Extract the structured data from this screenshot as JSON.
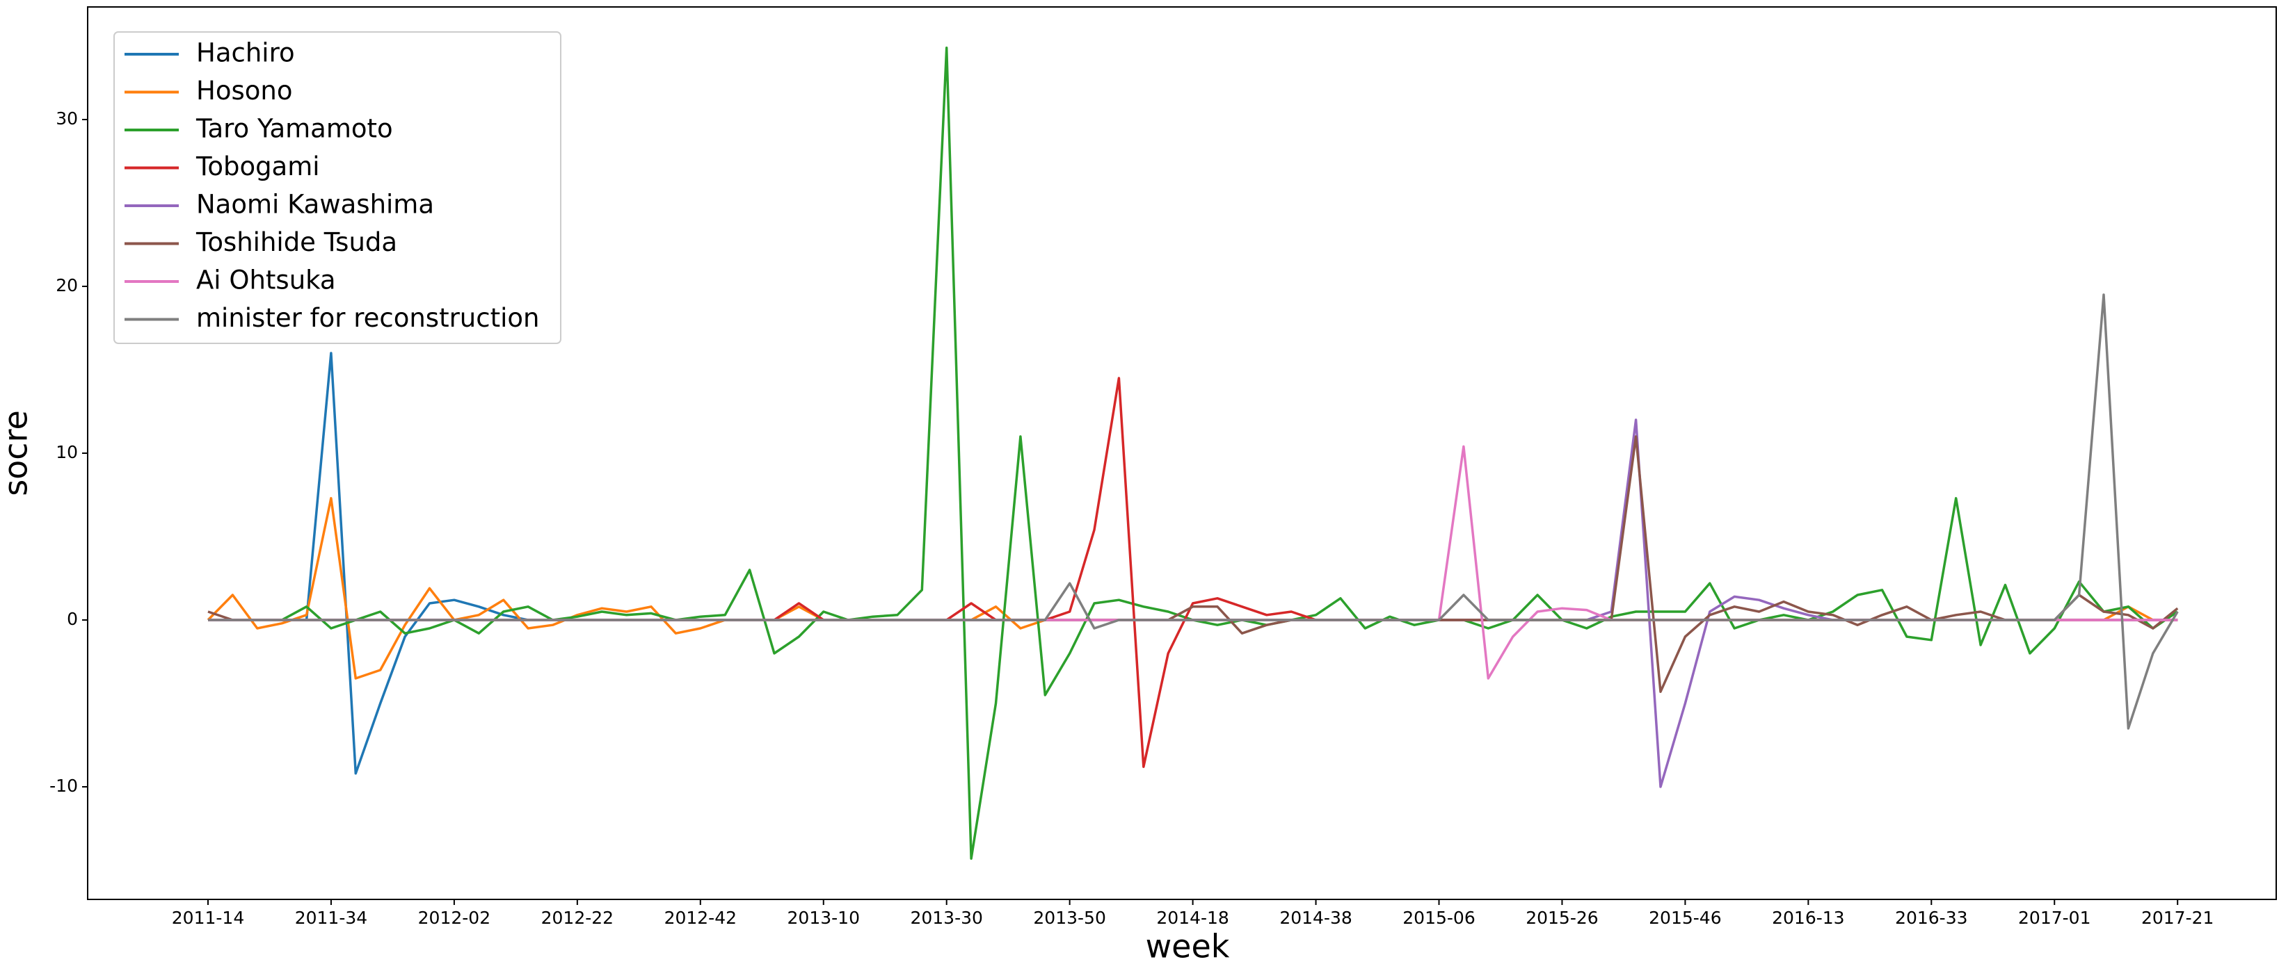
{
  "chart_data": {
    "type": "line",
    "x_label": "week",
    "y_label": "socre",
    "categories": [
      "2011-14",
      null,
      null,
      null,
      null,
      "2011-34",
      null,
      null,
      null,
      null,
      "2012-02",
      null,
      null,
      null,
      null,
      "2012-22",
      null,
      null,
      null,
      null,
      "2012-42",
      null,
      null,
      null,
      null,
      "2013-10",
      null,
      null,
      null,
      null,
      "2013-30",
      null,
      null,
      null,
      null,
      "2013-50",
      null,
      null,
      null,
      null,
      "2014-18",
      null,
      null,
      null,
      null,
      "2014-38",
      null,
      null,
      null,
      null,
      "2015-06",
      null,
      null,
      null,
      null,
      "2015-26",
      null,
      null,
      null,
      null,
      "2015-46",
      null,
      null,
      null,
      null,
      "2016-13",
      null,
      null,
      null,
      null,
      "2016-33",
      null,
      null,
      null,
      null,
      "2017-01",
      null,
      null,
      null,
      null,
      "2017-21"
    ],
    "ylim": [
      -16.75,
      36.75
    ],
    "yticks": [
      -10,
      0,
      10,
      20,
      30
    ],
    "legend": "upper left",
    "series": [
      {
        "name": "Hachiro",
        "color": "#1f77b4",
        "values": [
          0,
          0,
          0,
          0,
          0,
          16,
          -9.2,
          -5,
          -1,
          1,
          1.2,
          0.8,
          0.3,
          0,
          0,
          0,
          0,
          0,
          0,
          0,
          0,
          0,
          0,
          0,
          0,
          0,
          0,
          0,
          0,
          0,
          0,
          0,
          0,
          0,
          0,
          0,
          0,
          0,
          0,
          0,
          0,
          0,
          0,
          0,
          0,
          0,
          0,
          0,
          0,
          0,
          0,
          0,
          0,
          0,
          0,
          0,
          0,
          0,
          0,
          0,
          0,
          0,
          0,
          0,
          0,
          0,
          0,
          0,
          0,
          0,
          0,
          0,
          0,
          0,
          0,
          0,
          0,
          0,
          0,
          0,
          0
        ]
      },
      {
        "name": "Hosono",
        "color": "#ff7f0e",
        "values": [
          0,
          1.5,
          -0.5,
          -0.2,
          0.3,
          7.3,
          -3.5,
          -3,
          -0.3,
          1.9,
          0,
          0.3,
          1.2,
          -0.5,
          -0.3,
          0.3,
          0.7,
          0.5,
          0.8,
          -0.8,
          -0.5,
          0,
          0,
          0,
          0.8,
          0,
          0,
          0,
          0,
          0,
          0,
          0,
          0.8,
          -0.5,
          0,
          0,
          0,
          0,
          0,
          0,
          0,
          0,
          0,
          0,
          0,
          0,
          0,
          0,
          0,
          0,
          0,
          0,
          0,
          0,
          0,
          0,
          0,
          0,
          0,
          0,
          0,
          0,
          0,
          0,
          0,
          0,
          0,
          0,
          0,
          0,
          0,
          0,
          0,
          0,
          0,
          0,
          0,
          0,
          0.8,
          0,
          0
        ]
      },
      {
        "name": "Taro Yamamoto",
        "color": "#2ca02c",
        "values": [
          0,
          0,
          0,
          0,
          0.8,
          -0.5,
          0,
          0.5,
          -0.8,
          -0.5,
          0,
          -0.8,
          0.5,
          0.8,
          0,
          0.2,
          0.5,
          0.3,
          0.4,
          0,
          0.2,
          0.3,
          3,
          -2,
          -1,
          0.5,
          0,
          0.2,
          0.3,
          1.8,
          34.3,
          -14.3,
          -5,
          11,
          -4.5,
          -2,
          1,
          1.2,
          0.8,
          0.5,
          0,
          -0.3,
          0,
          -0.3,
          0,
          0.3,
          1.3,
          -0.5,
          0.2,
          -0.3,
          0,
          0,
          -0.5,
          0,
          1.5,
          0,
          -0.5,
          0.2,
          0.5,
          0.5,
          0.5,
          2.2,
          -0.5,
          0,
          0.3,
          0,
          0.5,
          1.5,
          1.8,
          -1,
          -1.2,
          7.3,
          -1.5,
          2.1,
          -2,
          -0.5,
          2.3,
          0.5,
          0.8,
          -0.5,
          0.5
        ]
      },
      {
        "name": "Tobogami",
        "color": "#d62728",
        "values": [
          0,
          0,
          0,
          0,
          0,
          0,
          0,
          0,
          0,
          0,
          0,
          0,
          0,
          0,
          0,
          0,
          0,
          0,
          0,
          0,
          0,
          0,
          0,
          0,
          1,
          0,
          0,
          0,
          0,
          0,
          0,
          1,
          0,
          0,
          0,
          0.5,
          5.4,
          14.5,
          -8.8,
          -2,
          1,
          1.3,
          0.8,
          0.3,
          0.5,
          0,
          0,
          0,
          0,
          0,
          0,
          0,
          0,
          0,
          0,
          0,
          0,
          0,
          0,
          0,
          0,
          0,
          0,
          0,
          0,
          0,
          0,
          0,
          0,
          0,
          0,
          0,
          0,
          0,
          0,
          0,
          0,
          0,
          0,
          0,
          0
        ]
      },
      {
        "name": "Naomi Kawashima",
        "color": "#9467bd",
        "values": [
          0,
          0,
          0,
          0,
          0,
          0,
          0,
          0,
          0,
          0,
          0,
          0,
          0,
          0,
          0,
          0,
          0,
          0,
          0,
          0,
          0,
          0,
          0,
          0,
          0,
          0,
          0,
          0,
          0,
          0,
          0,
          0,
          0,
          0,
          0,
          0,
          0,
          0,
          0,
          0,
          0,
          0,
          0,
          0,
          0,
          0,
          0,
          0,
          0,
          0,
          0,
          0,
          0,
          0,
          0,
          0,
          0,
          0.5,
          12,
          -10,
          -5,
          0.5,
          1.4,
          1.2,
          0.7,
          0.3,
          0,
          0,
          0,
          0,
          0,
          0,
          0,
          0,
          0,
          0,
          0,
          0,
          0,
          0,
          0
        ]
      },
      {
        "name": "Toshihide Tsuda",
        "color": "#8c564b",
        "values": [
          0.5,
          0,
          0,
          0,
          0,
          0,
          0,
          0,
          0,
          0,
          0,
          0,
          0,
          0,
          0,
          0,
          0,
          0,
          0,
          0,
          0,
          0,
          0,
          0,
          0,
          0,
          0,
          0,
          0,
          0,
          0,
          0,
          0,
          0,
          0,
          0,
          0,
          0,
          0,
          0,
          0.8,
          0.8,
          -0.8,
          -0.3,
          0,
          0,
          0,
          0,
          0,
          0,
          0,
          0,
          0,
          0,
          0,
          0,
          0,
          0,
          11,
          -4.3,
          -1,
          0.3,
          0.8,
          0.5,
          1.1,
          0.5,
          0.3,
          -0.3,
          0.3,
          0.8,
          0,
          0.3,
          0.5,
          0,
          0,
          0,
          1.5,
          0.5,
          0.3,
          -0.5,
          0.7
        ]
      },
      {
        "name": "Ai Ohtsuka",
        "color": "#e377c2",
        "values": [
          0,
          0,
          0,
          0,
          0,
          0,
          0,
          0,
          0,
          0,
          0,
          0,
          0,
          0,
          0,
          0,
          0,
          0,
          0,
          0,
          0,
          0,
          0,
          0,
          0,
          0,
          0,
          0,
          0,
          0,
          0,
          0,
          0,
          0,
          0,
          0,
          0,
          0,
          0,
          0,
          0,
          0,
          0,
          0,
          0,
          0,
          0,
          0,
          0,
          0,
          0,
          10.4,
          -3.5,
          -1,
          0.5,
          0.7,
          0.6,
          0,
          0,
          0,
          0,
          0,
          0,
          0,
          0,
          0,
          0,
          0,
          0,
          0,
          0,
          0,
          0,
          0,
          0,
          0,
          0,
          0,
          0,
          0,
          0
        ]
      },
      {
        "name": "minister for reconstruction",
        "color": "#7f7f7f",
        "values": [
          0,
          0,
          0,
          0,
          0,
          0,
          0,
          0,
          0,
          0,
          0,
          0,
          0,
          0,
          0,
          0,
          0,
          0,
          0,
          0,
          0,
          0,
          0,
          0,
          0,
          0,
          0,
          0,
          0,
          0,
          0,
          0,
          0,
          0,
          0,
          2.2,
          -0.5,
          0,
          0,
          0,
          0,
          0,
          0,
          0,
          0,
          0,
          0,
          0,
          0,
          0,
          0,
          1.5,
          0,
          0,
          0,
          0,
          0,
          0,
          0,
          0,
          0,
          0,
          0,
          0,
          0,
          0,
          0,
          0,
          0,
          0,
          0,
          0,
          0,
          0,
          0,
          0,
          1.5,
          19.5,
          -6.5,
          -2,
          0.5
        ]
      }
    ]
  }
}
